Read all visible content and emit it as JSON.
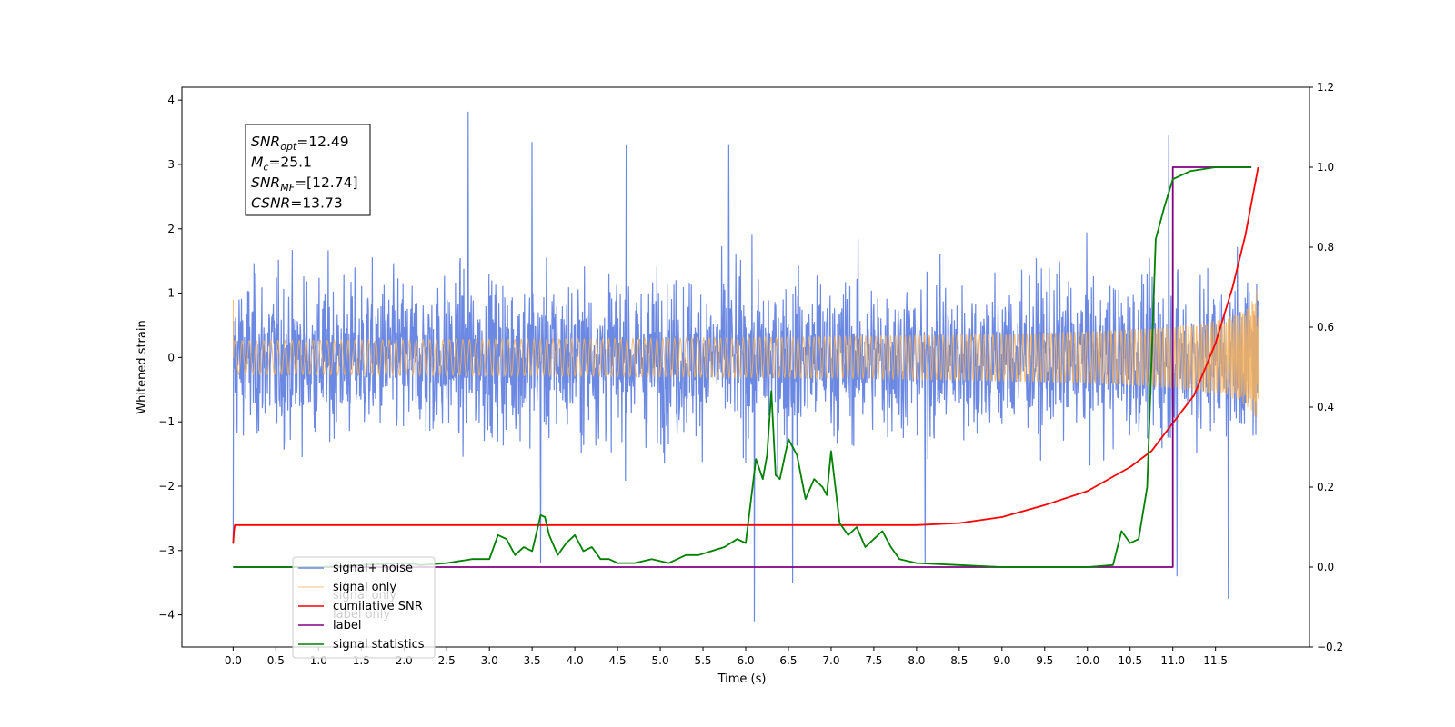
{
  "chart_data": {
    "type": "line",
    "xlabel": "Time (s)",
    "ylabel": "Whitened strain",
    "xlim": [
      -0.6,
      12.6
    ],
    "ylim": [
      -4.5,
      4.2
    ],
    "ylim_right": [
      -0.2,
      1.2
    ],
    "xticks": [
      "0.0",
      "0.5",
      "1.0",
      "1.5",
      "2.0",
      "2.5",
      "3.0",
      "3.5",
      "4.0",
      "4.5",
      "5.0",
      "5.5",
      "6.0",
      "6.5",
      "7.0",
      "7.5",
      "8.0",
      "8.5",
      "9.0",
      "9.5",
      "10.0",
      "10.5",
      "11.0",
      "11.5"
    ],
    "yticks_left": [
      "4",
      "3",
      "2",
      "1",
      "0",
      "−1",
      "−2",
      "−3",
      "−4"
    ],
    "yticks_right": [
      "1.2",
      "1.0",
      "0.8",
      "0.6",
      "0.4",
      "0.2",
      "0.0",
      "−0.2"
    ],
    "grid": false,
    "legend_position": "bottom-left",
    "annotation": {
      "lines": [
        {
          "var": "SNR",
          "sub": "opt",
          "value": "=12.49"
        },
        {
          "var": "M",
          "sub": "c",
          "value": "=25.1"
        },
        {
          "var": "SNR",
          "sub": "MF",
          "value": "=[12.74]"
        },
        {
          "var": "CSNR",
          "sub": "",
          "value": "=13.73"
        }
      ]
    },
    "series": [
      {
        "name": "signal+ noise",
        "axis": "left",
        "color": "#6b88e3",
        "kind": "noise",
        "x_range": [
          0.0,
          12.0
        ],
        "typical_amplitude": 1.9,
        "peaks": [
          [
            0.0,
            2.15
          ],
          [
            0.0,
            -2.9
          ],
          [
            2.75,
            3.82
          ],
          [
            3.5,
            3.35
          ],
          [
            4.6,
            3.3
          ],
          [
            5.8,
            3.3
          ],
          [
            6.1,
            -4.1
          ],
          [
            6.55,
            -3.5
          ],
          [
            10.95,
            3.45
          ],
          [
            11.05,
            -3.4
          ],
          [
            11.65,
            -3.75
          ],
          [
            3.6,
            -3.2
          ],
          [
            8.1,
            -3.2
          ]
        ]
      },
      {
        "name": "signal only",
        "axis": "left",
        "color": "#f5b25c",
        "kind": "chirp",
        "x_range": [
          0.0,
          12.0
        ],
        "t_merger": 12.0,
        "final_amplitude": 1.3
      },
      {
        "name": "cumilative SNR",
        "axis": "right",
        "color": "#ff0000",
        "x": [
          0.0,
          0.01,
          0.02,
          8.0,
          8.5,
          9.0,
          9.5,
          10.0,
          10.5,
          10.75,
          11.0,
          11.25,
          11.5,
          11.7,
          11.85,
          12.0
        ],
        "y": [
          0.06,
          0.09,
          0.105,
          0.105,
          0.11,
          0.125,
          0.155,
          0.19,
          0.25,
          0.29,
          0.36,
          0.43,
          0.56,
          0.7,
          0.83,
          1.0
        ]
      },
      {
        "name": "label",
        "axis": "right",
        "color": "#800080",
        "x": [
          0.0,
          11.0,
          11.0,
          11.92
        ],
        "y": [
          0.0,
          0.0,
          1.0,
          1.0
        ]
      },
      {
        "name": "signal statistics",
        "axis": "right",
        "color": "#008000",
        "x": [
          0.0,
          1.0,
          2.0,
          2.2,
          2.5,
          2.8,
          3.0,
          3.1,
          3.2,
          3.3,
          3.4,
          3.5,
          3.6,
          3.65,
          3.7,
          3.8,
          3.9,
          4.0,
          4.1,
          4.2,
          4.3,
          4.4,
          4.5,
          4.7,
          4.9,
          5.1,
          5.3,
          5.45,
          5.6,
          5.75,
          5.9,
          6.0,
          6.12,
          6.2,
          6.25,
          6.3,
          6.35,
          6.4,
          6.5,
          6.6,
          6.7,
          6.8,
          6.9,
          6.95,
          7.0,
          7.1,
          7.2,
          7.3,
          7.4,
          7.5,
          7.6,
          7.7,
          7.8,
          8.0,
          8.5,
          9.0,
          10.0,
          10.3,
          10.4,
          10.5,
          10.6,
          10.7,
          10.8,
          10.9,
          11.0,
          11.2,
          11.5,
          11.92
        ],
        "y": [
          0.0,
          0.0,
          0.01,
          0.005,
          0.01,
          0.02,
          0.02,
          0.08,
          0.07,
          0.03,
          0.05,
          0.04,
          0.13,
          0.125,
          0.08,
          0.03,
          0.06,
          0.08,
          0.04,
          0.05,
          0.02,
          0.02,
          0.01,
          0.01,
          0.02,
          0.01,
          0.03,
          0.03,
          0.04,
          0.05,
          0.07,
          0.06,
          0.27,
          0.22,
          0.28,
          0.44,
          0.23,
          0.22,
          0.32,
          0.28,
          0.17,
          0.22,
          0.2,
          0.18,
          0.29,
          0.11,
          0.08,
          0.1,
          0.05,
          0.07,
          0.09,
          0.05,
          0.02,
          0.01,
          0.005,
          0.0,
          0.0,
          0.005,
          0.09,
          0.06,
          0.07,
          0.2,
          0.82,
          0.9,
          0.97,
          0.99,
          1.0,
          1.0
        ]
      }
    ],
    "legend": [
      "signal+ noise",
      "signal only",
      "cumilative SNR",
      "label",
      "signal statistics"
    ],
    "legend_ghost": [
      "signal only",
      "label only"
    ]
  }
}
